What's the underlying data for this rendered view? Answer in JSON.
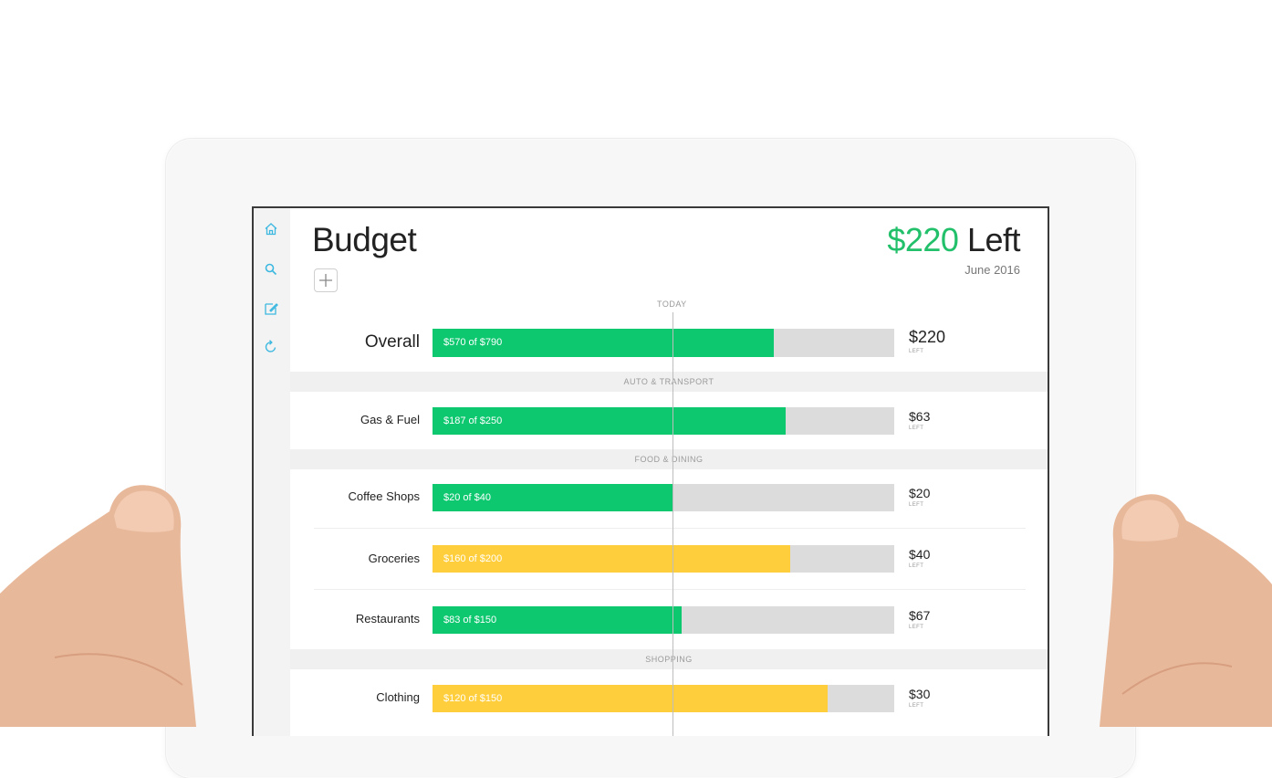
{
  "header": {
    "title": "Budget",
    "remaining_amount": "$220",
    "remaining_suffix": "Left",
    "month": "June 2016"
  },
  "sidebar": {
    "icons": [
      "home-icon",
      "search-icon",
      "edit-icon",
      "refresh-icon"
    ]
  },
  "today_label": "TODAY",
  "left_word": "LEFT",
  "overall": {
    "label": "Overall",
    "bar_text": "$570 of $790",
    "left": "$220",
    "progress": 0.74,
    "color": "#0ec870"
  },
  "sections": [
    {
      "title": "AUTO & TRANSPORT"
    },
    {
      "title": "FOOD & DINING"
    },
    {
      "title": "SHOPPING"
    }
  ],
  "categories": [
    {
      "label": "Gas & Fuel",
      "bar_text": "$187 of $250",
      "left": "$63",
      "progress": 0.765,
      "color": "#0ec870"
    },
    {
      "label": "Coffee Shops",
      "bar_text": "$20 of $40",
      "left": "$20",
      "progress": 0.52,
      "color": "#0ec870"
    },
    {
      "label": "Groceries",
      "bar_text": "$160 of $200",
      "left": "$40",
      "progress": 0.775,
      "color": "#ffce3c"
    },
    {
      "label": "Restaurants",
      "bar_text": "$83 of $150",
      "left": "$67",
      "progress": 0.54,
      "color": "#0ec870"
    },
    {
      "label": "Clothing",
      "bar_text": "$120 of $150",
      "left": "$30",
      "progress": 0.855,
      "color": "#ffce3c"
    }
  ],
  "colors": {
    "accent_green": "#22c06a",
    "bar_green": "#0ec870",
    "bar_yellow": "#ffce3c",
    "sidebar_icon": "#3cb8e0"
  }
}
